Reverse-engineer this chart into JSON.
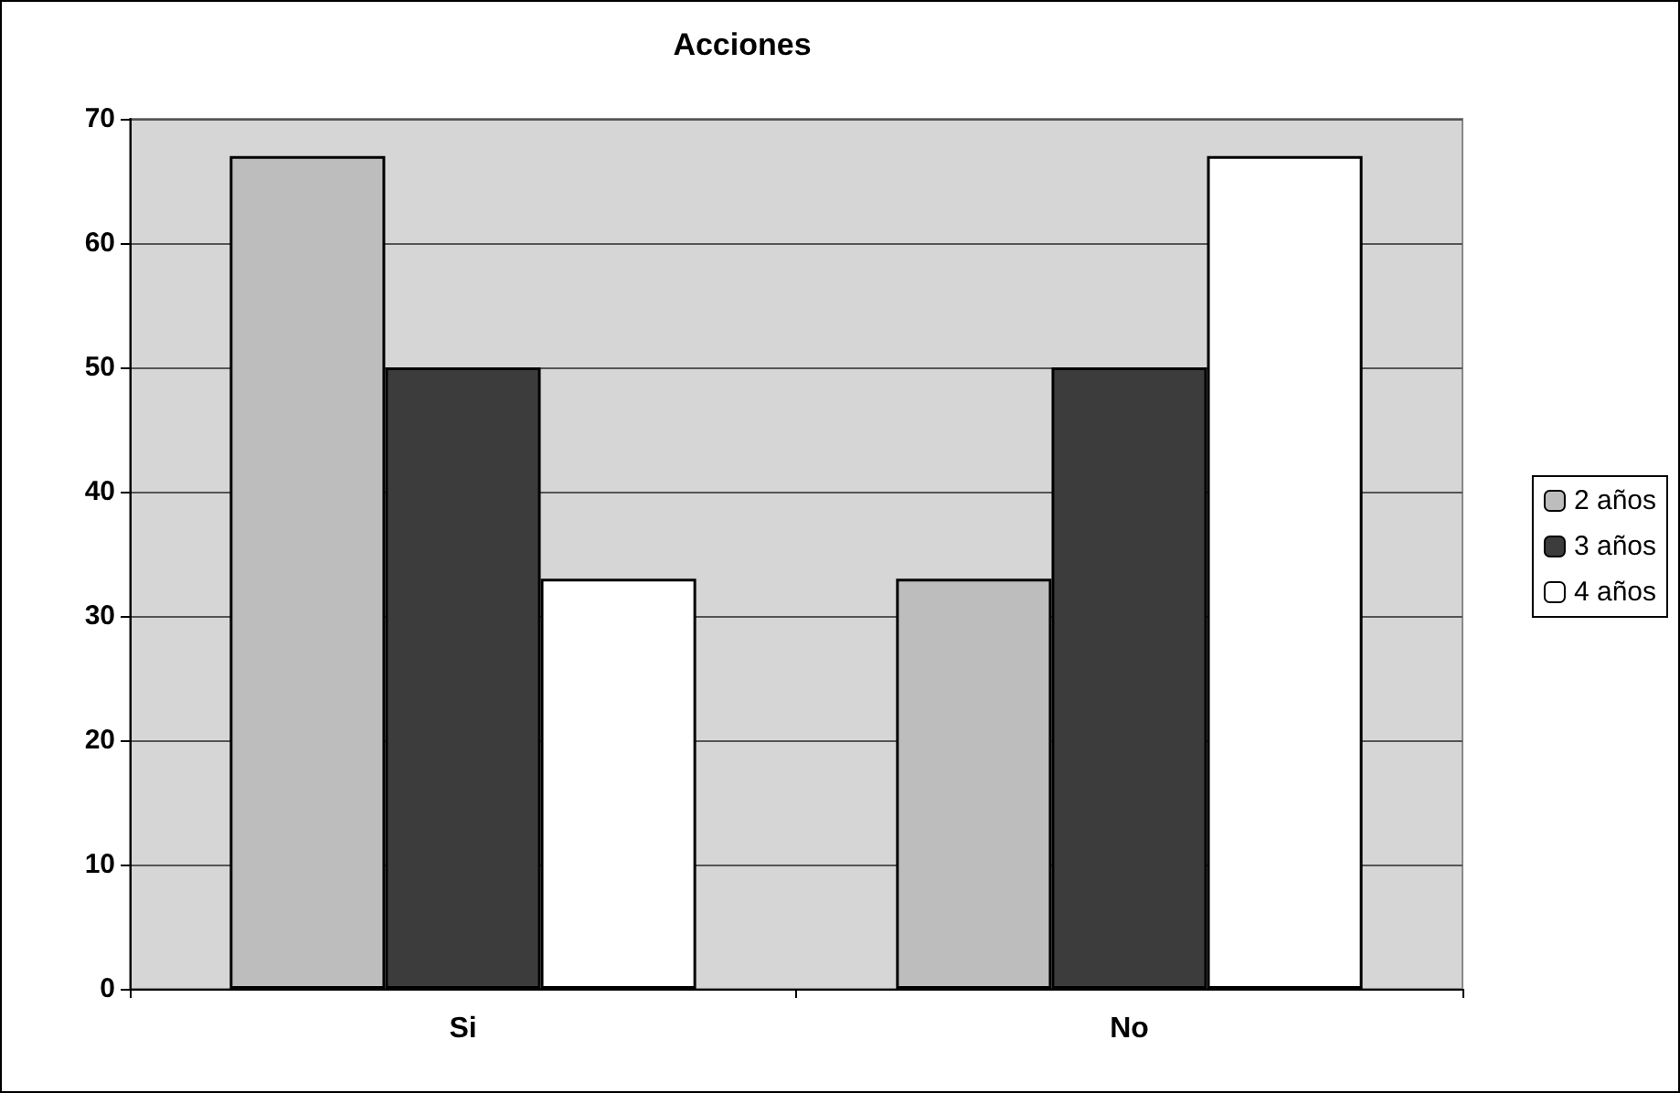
{
  "chart_data": {
    "type": "bar",
    "title": "Acciones",
    "categories": [
      "Si",
      "No"
    ],
    "series": [
      {
        "name": "2 años",
        "color": "#bdbdbd",
        "values": [
          67,
          33
        ]
      },
      {
        "name": "3 años",
        "color": "#3c3c3c",
        "values": [
          50,
          50
        ]
      },
      {
        "name": "4 años",
        "color": "#ffffff",
        "values": [
          33,
          67
        ]
      }
    ],
    "ylim": [
      0,
      70
    ],
    "yticks": [
      0,
      10,
      20,
      30,
      40,
      50,
      60,
      70
    ],
    "grid": "y",
    "legend": "right"
  }
}
